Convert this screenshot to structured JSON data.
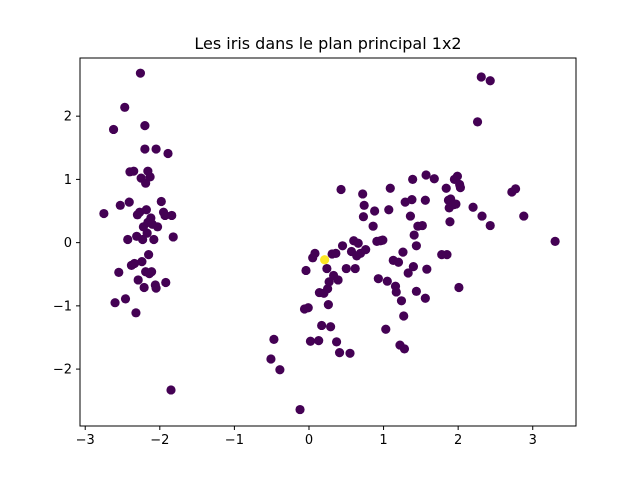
{
  "chart_data": {
    "type": "scatter",
    "title": "Les iris dans le plan principal 1x2",
    "xlabel": "",
    "ylabel": "",
    "xlim": [
      -3.07,
      3.58
    ],
    "ylim": [
      -2.9,
      2.92
    ],
    "grid": false,
    "xticks": [
      -3,
      -2,
      -1,
      0,
      1,
      2,
      3
    ],
    "yticks": [
      -2,
      -1,
      0,
      1,
      2
    ],
    "xtick_labels": [
      "−3",
      "−2",
      "−1",
      "0",
      "1",
      "2",
      "3"
    ],
    "ytick_labels": [
      "−2",
      "−1",
      "0",
      "1",
      "2"
    ],
    "colors": {
      "default": "#440154",
      "highlight": "#fde725"
    },
    "series": [
      {
        "values": [
          {
            "x": -2.75,
            "y": 0.46
          },
          {
            "x": -2.62,
            "y": 1.79
          },
          {
            "x": -2.6,
            "y": -0.95
          },
          {
            "x": -2.55,
            "y": -0.47
          },
          {
            "x": -2.53,
            "y": 0.59
          },
          {
            "x": -2.47,
            "y": 2.14
          },
          {
            "x": -2.46,
            "y": -0.89
          },
          {
            "x": -2.43,
            "y": 0.05
          },
          {
            "x": -2.41,
            "y": 0.64
          },
          {
            "x": -2.4,
            "y": 1.12
          },
          {
            "x": -2.38,
            "y": -0.36
          },
          {
            "x": -2.35,
            "y": 1.13
          },
          {
            "x": -2.34,
            "y": -0.33
          },
          {
            "x": -2.32,
            "y": -1.11
          },
          {
            "x": -2.31,
            "y": 0.1
          },
          {
            "x": -2.3,
            "y": 0.44
          },
          {
            "x": -2.29,
            "y": -0.59
          },
          {
            "x": -2.27,
            "y": 0.48
          },
          {
            "x": -2.26,
            "y": 2.68
          },
          {
            "x": -2.25,
            "y": 1.02
          },
          {
            "x": -2.24,
            "y": -0.3
          },
          {
            "x": -2.23,
            "y": 0.05
          },
          {
            "x": -2.22,
            "y": 0.25
          },
          {
            "x": -2.21,
            "y": -0.71
          },
          {
            "x": -2.2,
            "y": 1.85
          },
          {
            "x": -2.2,
            "y": 1.48
          },
          {
            "x": -2.19,
            "y": 0.94
          },
          {
            "x": -2.19,
            "y": -0.46
          },
          {
            "x": -2.18,
            "y": 0.52
          },
          {
            "x": -2.17,
            "y": 0.15
          },
          {
            "x": -2.16,
            "y": 1.13
          },
          {
            "x": -2.16,
            "y": 0.32
          },
          {
            "x": -2.15,
            "y": -0.19
          },
          {
            "x": -2.14,
            "y": -0.49
          },
          {
            "x": -2.13,
            "y": 1.04
          },
          {
            "x": -2.12,
            "y": 0.39
          },
          {
            "x": -2.11,
            "y": -0.46
          },
          {
            "x": -2.1,
            "y": 0.29
          },
          {
            "x": -2.08,
            "y": 0.05
          },
          {
            "x": -2.06,
            "y": -0.67
          },
          {
            "x": -2.05,
            "y": 1.48
          },
          {
            "x": -2.05,
            "y": -0.72
          },
          {
            "x": -2.03,
            "y": 0.25
          },
          {
            "x": -1.98,
            "y": 0.65
          },
          {
            "x": -1.95,
            "y": 0.48
          },
          {
            "x": -1.93,
            "y": 0.43
          },
          {
            "x": -1.92,
            "y": -0.63
          },
          {
            "x": -1.89,
            "y": 1.41
          },
          {
            "x": -1.85,
            "y": -2.33
          },
          {
            "x": -1.84,
            "y": 0.43
          },
          {
            "x": -1.82,
            "y": 0.09
          },
          {
            "x": -0.51,
            "y": -1.84
          },
          {
            "x": -0.47,
            "y": -1.53
          },
          {
            "x": -0.39,
            "y": -2.01
          },
          {
            "x": -0.12,
            "y": -2.64
          },
          {
            "x": -0.06,
            "y": -1.05
          },
          {
            "x": -0.04,
            "y": -0.44
          },
          {
            "x": -0.01,
            "y": -1.03
          },
          {
            "x": 0.02,
            "y": -1.56
          },
          {
            "x": 0.05,
            "y": -0.24
          },
          {
            "x": 0.08,
            "y": -0.17
          },
          {
            "x": 0.13,
            "y": -1.55
          },
          {
            "x": 0.14,
            "y": -0.79
          },
          {
            "x": 0.17,
            "y": -1.31
          },
          {
            "x": 0.2,
            "y": -0.8
          },
          {
            "x": 0.24,
            "y": -0.41
          },
          {
            "x": 0.25,
            "y": -0.73
          },
          {
            "x": 0.26,
            "y": -0.98
          },
          {
            "x": 0.27,
            "y": -0.62
          },
          {
            "x": 0.29,
            "y": -1.33
          },
          {
            "x": 0.31,
            "y": -0.18
          },
          {
            "x": 0.33,
            "y": -0.52
          },
          {
            "x": 0.36,
            "y": -0.17
          },
          {
            "x": 0.37,
            "y": -1.57
          },
          {
            "x": 0.39,
            "y": -0.59
          },
          {
            "x": 0.41,
            "y": -1.74
          },
          {
            "x": 0.43,
            "y": 0.84
          },
          {
            "x": 0.45,
            "y": -0.05
          },
          {
            "x": 0.5,
            "y": -0.41
          },
          {
            "x": 0.55,
            "y": -1.75
          },
          {
            "x": 0.57,
            "y": -0.14
          },
          {
            "x": 0.6,
            "y": 0.03
          },
          {
            "x": 0.62,
            "y": -0.41
          },
          {
            "x": 0.64,
            "y": -0.21
          },
          {
            "x": 0.66,
            "y": -0.01
          },
          {
            "x": 0.69,
            "y": -0.17
          },
          {
            "x": 0.72,
            "y": 0.77
          },
          {
            "x": 0.73,
            "y": 0.41
          },
          {
            "x": 0.74,
            "y": 0.59
          },
          {
            "x": 0.76,
            "y": -0.11
          },
          {
            "x": 0.86,
            "y": 0.26
          },
          {
            "x": 0.88,
            "y": 0.5
          },
          {
            "x": 0.91,
            "y": 0.02
          },
          {
            "x": 0.93,
            "y": -0.57
          },
          {
            "x": 0.96,
            "y": 0.03
          },
          {
            "x": 0.99,
            "y": 0.04
          },
          {
            "x": 1.03,
            "y": -1.37
          },
          {
            "x": 1.05,
            "y": -0.61
          },
          {
            "x": 1.07,
            "y": 0.52
          },
          {
            "x": 1.09,
            "y": 0.86
          },
          {
            "x": 1.13,
            "y": -0.28
          },
          {
            "x": 1.16,
            "y": -0.69
          },
          {
            "x": 1.17,
            "y": -0.78
          },
          {
            "x": 1.2,
            "y": -0.31
          },
          {
            "x": 1.22,
            "y": -1.62
          },
          {
            "x": 1.24,
            "y": -0.92
          },
          {
            "x": 1.26,
            "y": -0.15
          },
          {
            "x": 1.27,
            "y": -1.16
          },
          {
            "x": 1.28,
            "y": -1.68
          },
          {
            "x": 1.29,
            "y": 0.64
          },
          {
            "x": 1.33,
            "y": -0.48
          },
          {
            "x": 1.36,
            "y": 0.42
          },
          {
            "x": 1.38,
            "y": 0.68
          },
          {
            "x": 1.39,
            "y": 1.0
          },
          {
            "x": 1.4,
            "y": -0.38
          },
          {
            "x": 1.41,
            "y": 0.12
          },
          {
            "x": 1.44,
            "y": -0.77
          },
          {
            "x": 1.44,
            "y": -0.05
          },
          {
            "x": 1.46,
            "y": 0.26
          },
          {
            "x": 1.52,
            "y": 0.27
          },
          {
            "x": 1.56,
            "y": 0.67
          },
          {
            "x": 1.56,
            "y": -0.88
          },
          {
            "x": 1.57,
            "y": 1.07
          },
          {
            "x": 1.58,
            "y": -0.42
          },
          {
            "x": 1.68,
            "y": 1.01
          },
          {
            "x": 1.78,
            "y": -0.19
          },
          {
            "x": 1.84,
            "y": 0.86
          },
          {
            "x": 1.85,
            "y": -0.19
          },
          {
            "x": 1.87,
            "y": 0.67
          },
          {
            "x": 1.88,
            "y": 0.55
          },
          {
            "x": 1.89,
            "y": 0.33
          },
          {
            "x": 1.9,
            "y": 0.69
          },
          {
            "x": 1.94,
            "y": 0.6
          },
          {
            "x": 1.95,
            "y": 1.0
          },
          {
            "x": 1.97,
            "y": 0.61
          },
          {
            "x": 1.99,
            "y": 1.05
          },
          {
            "x": 2.01,
            "y": -0.71
          },
          {
            "x": 2.02,
            "y": 0.92
          },
          {
            "x": 2.03,
            "y": 0.87
          },
          {
            "x": 2.2,
            "y": 0.56
          },
          {
            "x": 2.26,
            "y": 1.91
          },
          {
            "x": 2.31,
            "y": 2.62
          },
          {
            "x": 2.32,
            "y": 0.42
          },
          {
            "x": 2.43,
            "y": 0.27
          },
          {
            "x": 2.43,
            "y": 2.56
          },
          {
            "x": 2.72,
            "y": 0.8
          },
          {
            "x": 2.77,
            "y": 0.85
          },
          {
            "x": 2.88,
            "y": 0.42
          },
          {
            "x": 3.3,
            "y": 0.02
          }
        ]
      },
      {
        "values": [
          {
            "x": 0.21,
            "y": -0.27
          }
        ]
      }
    ]
  }
}
